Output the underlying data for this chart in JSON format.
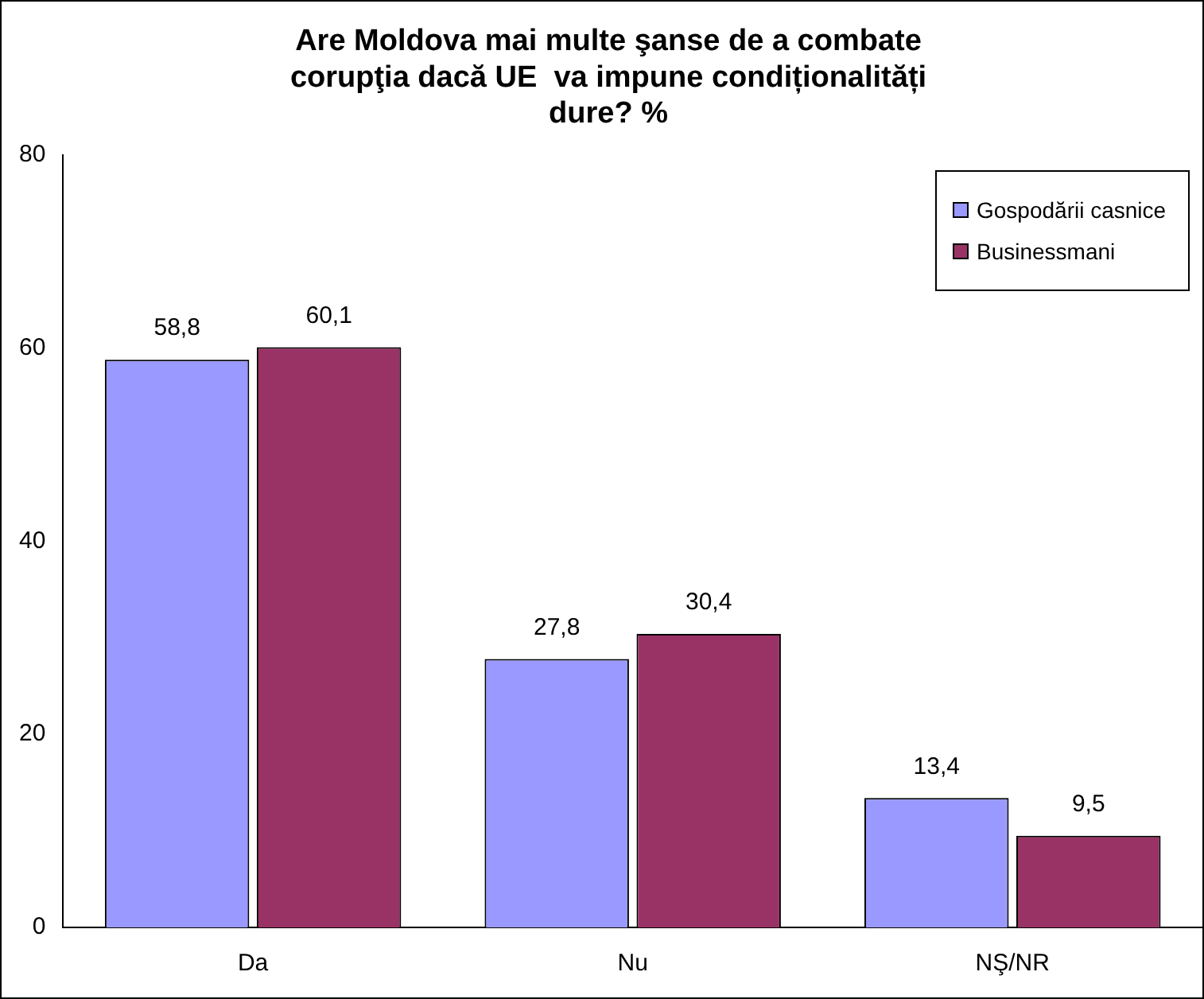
{
  "chart_data": {
    "type": "bar",
    "title": "Are Moldova mai multe şanse de a combate\ncorupţia dacă UE  va impune condiționalități\ndure? %",
    "categories": [
      "Da",
      "Nu",
      "NŞ/NR"
    ],
    "series": [
      {
        "name": "Gospodării casnice",
        "color": "#9999ff",
        "values": [
          58.8,
          27.8,
          13.4
        ],
        "value_labels": [
          "58,8",
          "27,8",
          "13,4"
        ]
      },
      {
        "name": "Businessmani",
        "color": "#993366",
        "values": [
          60.1,
          30.4,
          9.5
        ],
        "value_labels": [
          "60,1",
          "30,4",
          "9,5"
        ]
      }
    ],
    "ylim": [
      0,
      80
    ],
    "yticks": [
      0,
      20,
      40,
      60,
      80
    ],
    "grid": false,
    "legend": "top right"
  }
}
